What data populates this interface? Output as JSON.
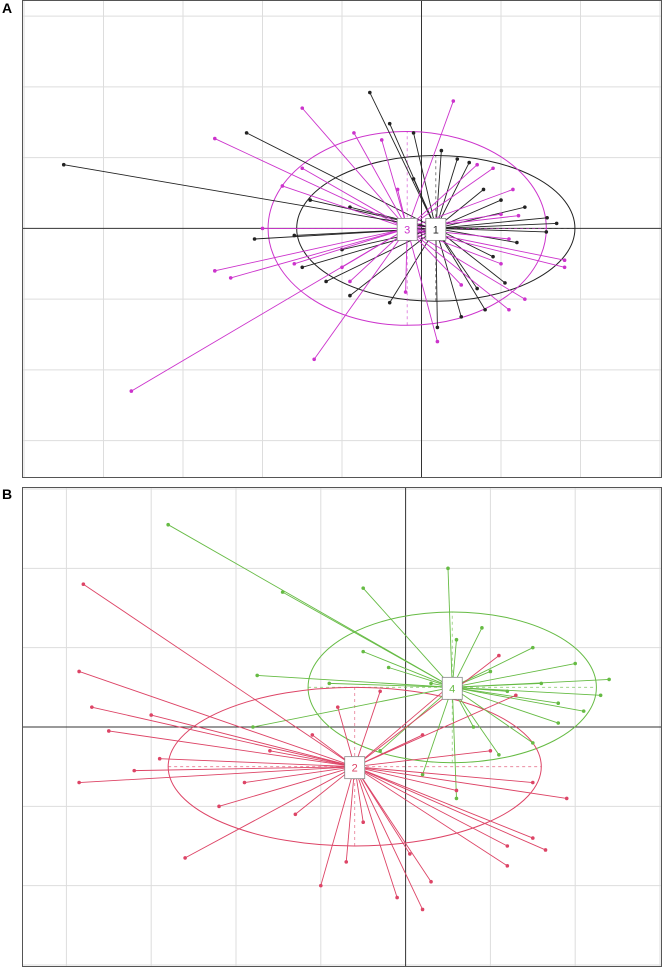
{
  "panels": [
    {
      "letter": "A",
      "chart_data": {
        "type": "scatter",
        "subtype": "spider-plot-with-inertia-ellipses",
        "xlim": [
          -5.0,
          3.0
        ],
        "ylim": [
          -3.5,
          3.2
        ],
        "grid": true,
        "groups": [
          {
            "label": "1",
            "color": "#222222",
            "center": [
              0.18,
              0.0
            ],
            "ellipse": {
              "rx": 1.75,
              "ry": 1.03
            },
            "points": [
              [
                -0.65,
                1.92
              ],
              [
                -0.4,
                1.48
              ],
              [
                -0.1,
                1.35
              ],
              [
                0.25,
                1.1
              ],
              [
                0.45,
                0.98
              ],
              [
                0.6,
                0.93
              ],
              [
                0.78,
                0.55
              ],
              [
                1.0,
                0.4
              ],
              [
                1.3,
                0.3
              ],
              [
                1.58,
                0.15
              ],
              [
                1.7,
                0.07
              ],
              [
                1.57,
                -0.05
              ],
              [
                1.2,
                -0.2
              ],
              [
                0.9,
                -0.4
              ],
              [
                1.05,
                -0.77
              ],
              [
                0.8,
                -1.15
              ],
              [
                0.5,
                -1.25
              ],
              [
                0.2,
                -1.4
              ],
              [
                -0.4,
                -1.05
              ],
              [
                -0.9,
                -0.95
              ],
              [
                -1.2,
                -0.75
              ],
              [
                -1.5,
                -0.55
              ],
              [
                -1.0,
                -0.3
              ],
              [
                -1.6,
                -0.1
              ],
              [
                -2.1,
                -0.15
              ],
              [
                -0.9,
                0.3
              ],
              [
                -1.4,
                0.4
              ],
              [
                -2.2,
                1.35
              ],
              [
                -0.1,
                0.7
              ],
              [
                0.7,
                -0.85
              ]
            ]
          },
          {
            "label": "3",
            "color": "#cc33cc",
            "center": [
              -0.18,
              0.0
            ],
            "ellipse": {
              "rx": 1.75,
              "ry": 1.37
            },
            "points": [
              [
                -1.5,
                1.7
              ],
              [
                -2.6,
                1.27
              ],
              [
                -0.85,
                1.35
              ],
              [
                0.4,
                1.8
              ],
              [
                0.9,
                0.85
              ],
              [
                1.15,
                0.55
              ],
              [
                1.22,
                0.18
              ],
              [
                1.1,
                -0.15
              ],
              [
                1.8,
                -0.55
              ],
              [
                1.8,
                -0.45
              ],
              [
                1.3,
                -1.0
              ],
              [
                1.1,
                -1.15
              ],
              [
                0.2,
                -1.6
              ],
              [
                -1.35,
                -1.85
              ],
              [
                -3.65,
                -2.3
              ],
              [
                -2.4,
                -0.7
              ],
              [
                -2.6,
                -0.6
              ],
              [
                -1.6,
                -0.5
              ],
              [
                -1.0,
                -0.55
              ],
              [
                -2.0,
                0.0
              ],
              [
                -1.5,
                0.85
              ],
              [
                -0.5,
                1.25
              ],
              [
                0.7,
                0.9
              ],
              [
                1.0,
                0.2
              ],
              [
                1.0,
                -0.5
              ],
              [
                -0.9,
                -0.75
              ],
              [
                -0.2,
                -0.9
              ],
              [
                0.5,
                -0.8
              ],
              [
                -1.75,
                0.6
              ],
              [
                -0.3,
                0.55
              ]
            ]
          }
        ],
        "outlier": {
          "group": "1",
          "point": [
            -4.5,
            0.9
          ]
        }
      }
    },
    {
      "letter": "B",
      "chart_data": {
        "type": "scatter",
        "subtype": "spider-plot-with-inertia-ellipses",
        "xlim": [
          -4.5,
          3.0
        ],
        "ylim": [
          -3.0,
          3.0
        ],
        "grid": true,
        "groups": [
          {
            "label": "4",
            "color": "#66bb44",
            "center": [
              0.55,
              0.5
            ],
            "ellipse": {
              "rx": 1.7,
              "ry": 0.95
            },
            "points": [
              [
                -2.8,
                2.55
              ],
              [
                -1.45,
                1.7
              ],
              [
                -0.5,
                1.75
              ],
              [
                0.5,
                2.0
              ],
              [
                0.9,
                1.25
              ],
              [
                1.5,
                1.0
              ],
              [
                2.0,
                0.8
              ],
              [
                2.3,
                0.4
              ],
              [
                2.4,
                0.6
              ],
              [
                2.1,
                0.2
              ],
              [
                1.8,
                0.05
              ],
              [
                1.5,
                -0.2
              ],
              [
                1.1,
                -0.35
              ],
              [
                0.6,
                -0.9
              ],
              [
                0.2,
                -0.6
              ],
              [
                -0.3,
                -0.3
              ],
              [
                -1.8,
                0.0
              ],
              [
                -1.75,
                0.65
              ],
              [
                -0.5,
                0.95
              ],
              [
                -0.9,
                0.55
              ],
              [
                0.3,
                0.55
              ],
              [
                1.0,
                0.7
              ],
              [
                1.6,
                0.55
              ],
              [
                1.2,
                0.45
              ],
              [
                -0.2,
                0.75
              ],
              [
                0.6,
                1.1
              ],
              [
                1.8,
                0.3
              ],
              [
                0.8,
                0.0
              ]
            ]
          },
          {
            "label": "2",
            "color": "#dd4466",
            "center": [
              -0.6,
              -0.5
            ],
            "ellipse": {
              "rx": 2.2,
              "ry": 1.0
            },
            "points": [
              [
                -3.8,
                1.8
              ],
              [
                -3.85,
                0.7
              ],
              [
                -3.7,
                0.25
              ],
              [
                -3.0,
                0.15
              ],
              [
                -3.5,
                -0.05
              ],
              [
                -2.9,
                -0.4
              ],
              [
                -3.2,
                -0.55
              ],
              [
                -3.85,
                -0.7
              ],
              [
                -1.9,
                -0.7
              ],
              [
                -1.6,
                -0.3
              ],
              [
                -1.1,
                -0.1
              ],
              [
                -0.8,
                0.25
              ],
              [
                -0.3,
                0.45
              ],
              [
                0.5,
                0.5
              ],
              [
                1.3,
                0.4
              ],
              [
                1.1,
                0.9
              ],
              [
                0.2,
                -0.1
              ],
              [
                1.9,
                -0.9
              ],
              [
                1.5,
                -0.7
              ],
              [
                1.5,
                -1.4
              ],
              [
                1.65,
                -1.55
              ],
              [
                1.2,
                -1.5
              ],
              [
                1.2,
                -1.75
              ],
              [
                0.3,
                -1.95
              ],
              [
                0.2,
                -2.3
              ],
              [
                -0.1,
                -2.15
              ],
              [
                -0.7,
                -1.7
              ],
              [
                -1.0,
                -2.0
              ],
              [
                -2.6,
                -1.65
              ],
              [
                -1.3,
                -1.1
              ],
              [
                0.6,
                -0.8
              ],
              [
                -0.5,
                -1.2
              ],
              [
                1.0,
                -0.3
              ],
              [
                -2.2,
                -1.0
              ],
              [
                0.05,
                -1.6
              ]
            ]
          }
        ]
      }
    }
  ]
}
